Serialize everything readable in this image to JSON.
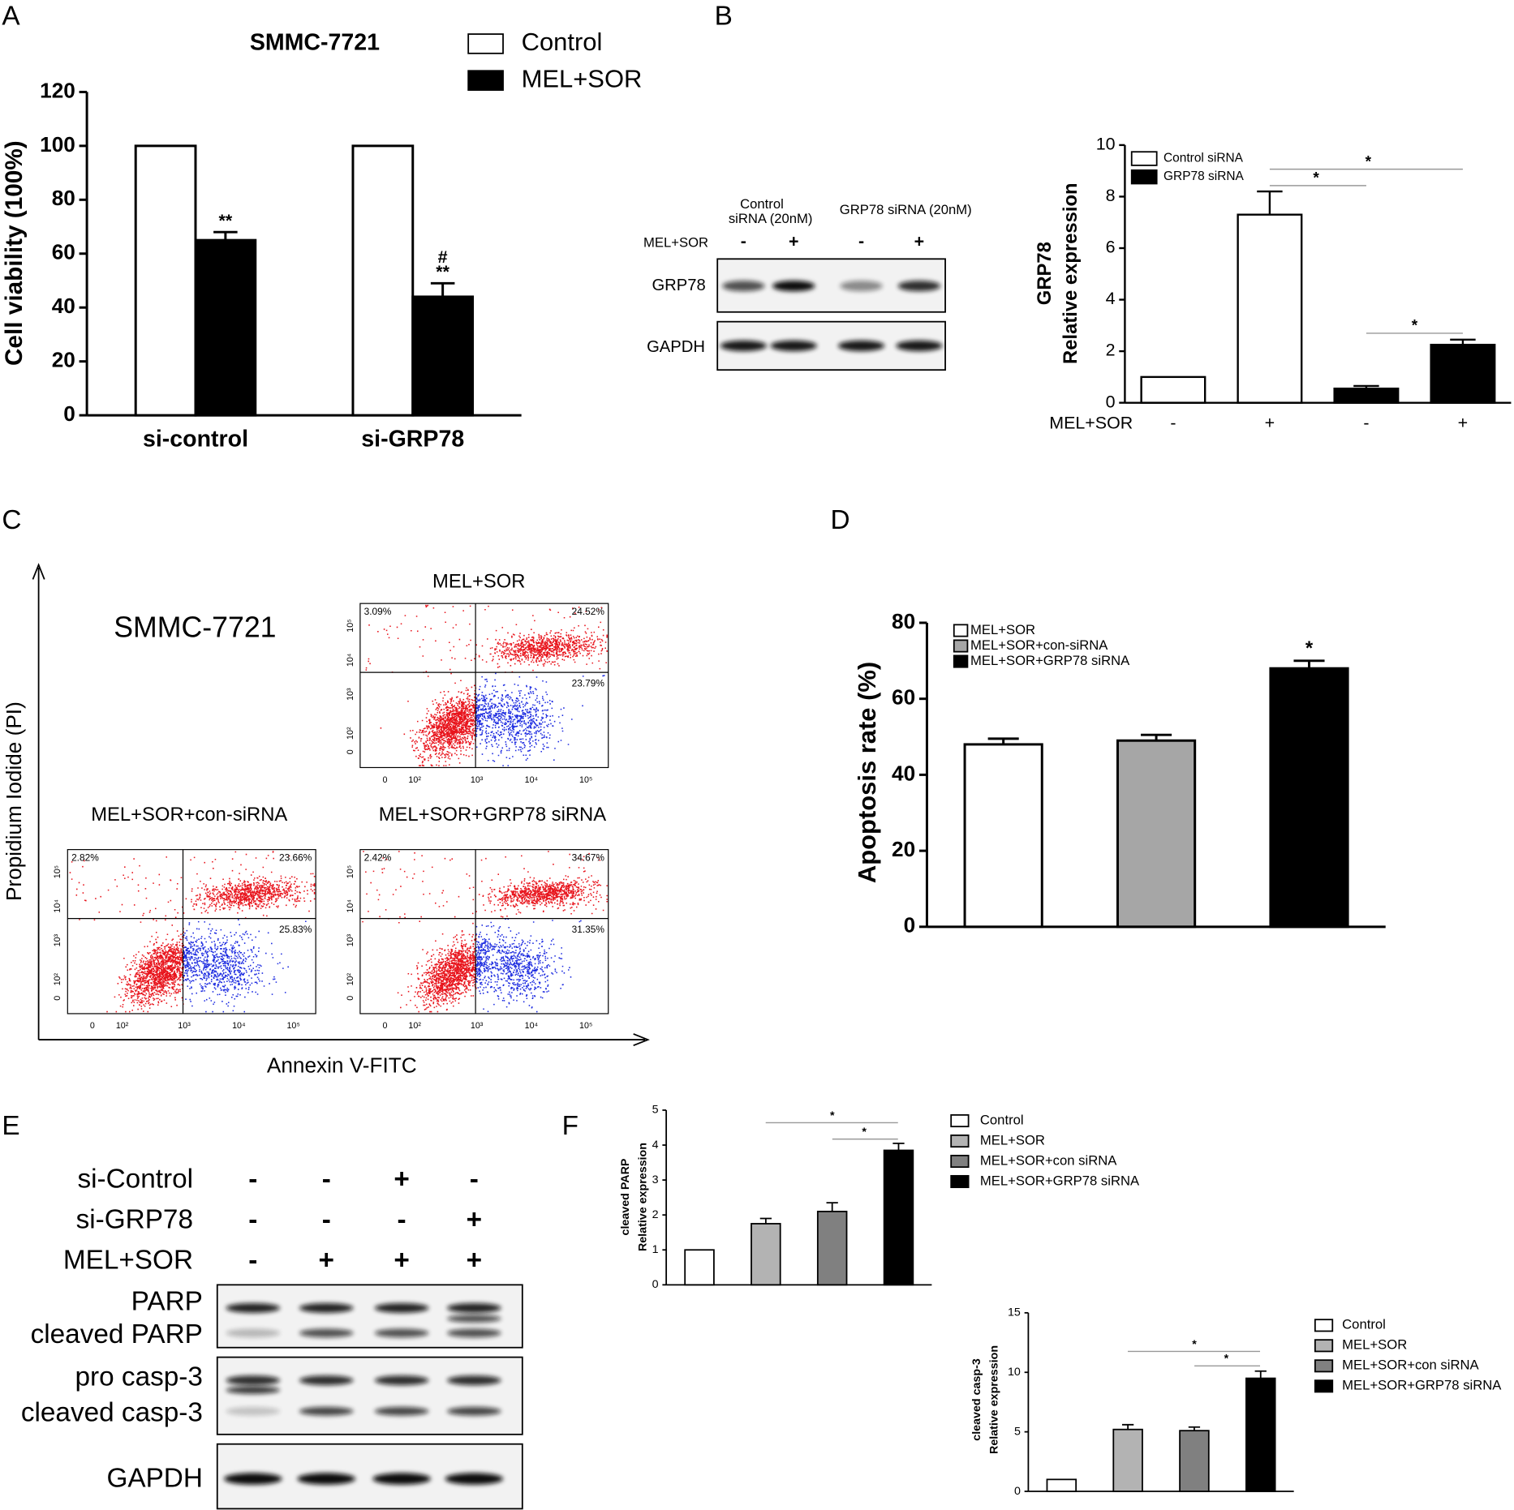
{
  "panel_labels": [
    "A",
    "B",
    "C",
    "D",
    "E",
    "F"
  ],
  "chart_data": [
    {
      "type": "bar",
      "title": "SMMC-7721",
      "y_label": [
        "Cell viability (100%)"
      ],
      "categories": [
        "si-control",
        "si-GRP78"
      ],
      "series": [
        {
          "name": "Control",
          "color": "#ffffff",
          "values": [
            100,
            100
          ],
          "errors": [
            null,
            null
          ]
        },
        {
          "name": "MEL+SOR",
          "color": "#000000",
          "values": [
            65,
            44
          ],
          "errors": [
            3,
            5
          ],
          "annotations": [
            [
              "**"
            ],
            [
              "#",
              "**"
            ]
          ]
        }
      ],
      "ylim": [
        0,
        120
      ],
      "yticks": [
        0,
        20,
        40,
        60,
        80,
        100,
        120
      ],
      "grid": false
    },
    {
      "type": "bar",
      "y_label": [
        "GRP78",
        "Relative expression"
      ],
      "x_row_label": "MEL+SOR",
      "categories": [
        "-",
        "+",
        "-",
        "+"
      ],
      "series": [
        {
          "name": "Control siRNA",
          "color": "#ffffff",
          "values": [
            1,
            7.3,
            null,
            null
          ],
          "errors": [
            null,
            0.9,
            null,
            null
          ]
        },
        {
          "name": "GRP78 siRNA",
          "color": "#000000",
          "values": [
            null,
            null,
            0.55,
            2.25
          ],
          "errors": [
            null,
            null,
            0.1,
            0.2
          ]
        }
      ],
      "significance": [
        "*",
        "*",
        "*"
      ],
      "ylim": [
        0,
        10
      ],
      "yticks": [
        0,
        2,
        4,
        6,
        8,
        10
      ],
      "grid": false
    },
    {
      "type": "bar",
      "y_label": [
        "Apoptosis rate (%)"
      ],
      "categories": [
        null,
        null,
        null
      ],
      "series": [
        {
          "name": "MEL+SOR",
          "color": "#ffffff",
          "values": [
            48,
            null,
            null
          ],
          "errors": [
            1.5,
            null,
            null
          ]
        },
        {
          "name": "MEL+SOR+con-siRNA",
          "color": "#a6a6a6",
          "values": [
            null,
            49,
            null
          ],
          "errors": [
            null,
            1.5,
            null
          ]
        },
        {
          "name": "MEL+SOR+GRP78 siRNA",
          "color": "#000000",
          "values": [
            null,
            null,
            68
          ],
          "errors": [
            null,
            null,
            2
          ],
          "annotations": [
            null,
            null,
            [
              "*"
            ]
          ]
        }
      ],
      "ylim": [
        0,
        80
      ],
      "yticks": [
        0,
        20,
        40,
        60,
        80
      ],
      "grid": false
    },
    {
      "type": "bar",
      "y_label": [
        "cleaved PARP",
        "Relative expression"
      ],
      "categories": [
        null,
        null,
        null,
        null
      ],
      "series": [
        {
          "name": "Control",
          "color": "#ffffff",
          "values": [
            1,
            null,
            null,
            null
          ],
          "errors": [
            null,
            null,
            null,
            null
          ]
        },
        {
          "name": "MEL+SOR",
          "color": "#b3b3b3",
          "values": [
            null,
            1.75,
            null,
            null
          ],
          "errors": [
            null,
            0.15,
            null,
            null
          ]
        },
        {
          "name": "MEL+SOR+con siRNA",
          "color": "#808080",
          "values": [
            null,
            null,
            2.1,
            null
          ],
          "errors": [
            null,
            null,
            0.25,
            null
          ]
        },
        {
          "name": "MEL+SOR+GRP78 siRNA",
          "color": "#000000",
          "values": [
            null,
            null,
            null,
            3.85
          ],
          "errors": [
            null,
            null,
            null,
            0.2
          ]
        }
      ],
      "significance": [
        "*",
        "*"
      ],
      "ylim": [
        0,
        5
      ],
      "yticks": [
        0,
        1,
        2,
        3,
        4,
        5
      ],
      "grid": false
    },
    {
      "type": "bar",
      "y_label": [
        "cleaved casp-3",
        "Relative expression"
      ],
      "categories": [
        null,
        null,
        null,
        null
      ],
      "series": [
        {
          "name": "Control",
          "color": "#ffffff",
          "values": [
            1,
            null,
            null,
            null
          ],
          "errors": [
            null,
            null,
            null,
            null
          ]
        },
        {
          "name": "MEL+SOR",
          "color": "#b3b3b3",
          "values": [
            null,
            5.2,
            null,
            null
          ],
          "errors": [
            null,
            0.4,
            null,
            null
          ]
        },
        {
          "name": "MEL+SOR+con siRNA",
          "color": "#808080",
          "values": [
            null,
            null,
            5.1,
            null
          ],
          "errors": [
            null,
            null,
            0.3,
            null
          ]
        },
        {
          "name": "MEL+SOR+GRP78 siRNA",
          "color": "#000000",
          "values": [
            null,
            null,
            null,
            9.5
          ],
          "errors": [
            null,
            null,
            null,
            0.6
          ]
        }
      ],
      "significance": [
        "*",
        "*"
      ],
      "ylim": [
        0,
        15
      ],
      "yticks": [
        0,
        5,
        10,
        15
      ],
      "grid": false
    }
  ],
  "blot_b": {
    "group_labels": [
      [
        "Control",
        "siRNA (20nM)"
      ],
      [
        "GRP78 siRNA (20nM)"
      ]
    ],
    "row_label": "MEL+SOR",
    "signs": [
      "-",
      "+",
      "-",
      "+"
    ],
    "bands": [
      "GRP78",
      "GAPDH"
    ]
  },
  "flow_c": {
    "cell_line": "SMMC-7721",
    "y_label": "Propidium Iodide (PI)",
    "x_label": "Annexin V-FITC",
    "axis_ticks": [
      "0",
      "10²",
      "10³",
      "10⁴",
      "10⁵"
    ],
    "plots": [
      {
        "title": "MEL+SOR",
        "quadrants": [
          "3.09%",
          "24.52%",
          "23.79%"
        ]
      },
      {
        "title": "MEL+SOR+con-siRNA",
        "quadrants": [
          "2.82%",
          "23.66%",
          "25.83%"
        ]
      },
      {
        "title": "MEL+SOR+GRP78 siRNA",
        "quadrants": [
          "2.42%",
          "34.67%",
          "31.35%"
        ]
      }
    ]
  },
  "blot_e": {
    "conditions": [
      {
        "label": "si-Control",
        "signs": [
          "-",
          "-",
          "+",
          "-"
        ]
      },
      {
        "label": "si-GRP78",
        "signs": [
          "-",
          "-",
          "-",
          "+"
        ]
      },
      {
        "label": "MEL+SOR",
        "signs": [
          "-",
          "+",
          "+",
          "+"
        ]
      }
    ],
    "bands": [
      "PARP",
      "cleaved PARP",
      "pro casp-3",
      "cleaved casp-3",
      "GAPDH"
    ]
  }
}
